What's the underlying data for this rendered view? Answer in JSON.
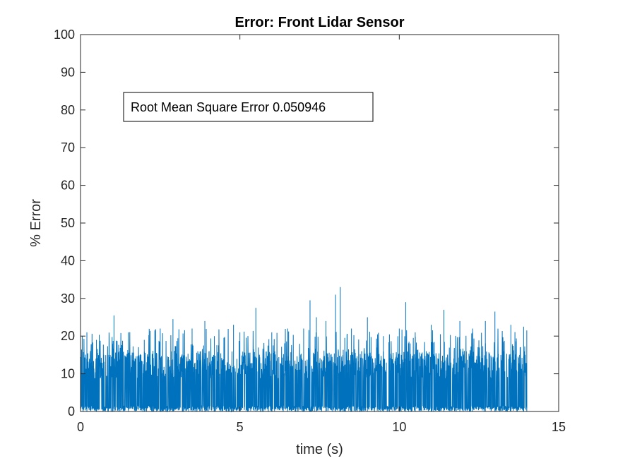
{
  "chart_data": {
    "type": "line",
    "title": "Error: Front Lidar Sensor",
    "xlabel": "time (s)",
    "ylabel": "% Error",
    "xlim": [
      0,
      15
    ],
    "ylim": [
      0,
      100
    ],
    "xticks": [
      0,
      5,
      10,
      15
    ],
    "yticks": [
      0,
      10,
      20,
      30,
      40,
      50,
      60,
      70,
      80,
      90,
      100
    ],
    "grid": false,
    "series": [
      {
        "color": "#0072BD",
        "x_range": [
          0,
          14
        ],
        "typical_band": [
          0,
          16
        ],
        "x": [
          0,
          0.2,
          0.5,
          1.0,
          1.05,
          1.5,
          2.0,
          2.5,
          2.9,
          3.5,
          3.9,
          4.2,
          4.8,
          5.0,
          5.5,
          6.0,
          6.5,
          7.0,
          7.2,
          7.4,
          7.7,
          8.0,
          8.15,
          8.5,
          9.0,
          9.5,
          10.0,
          10.2,
          10.5,
          11.0,
          11.4,
          11.9,
          12.3,
          12.7,
          13.0,
          13.5,
          13.9,
          14.0
        ],
        "peaks": [
          19,
          21,
          19,
          18,
          25.5,
          21,
          19,
          22,
          24.5,
          22,
          24,
          20,
          23,
          21,
          27.5,
          21,
          22,
          22,
          29.5,
          25,
          24,
          31,
          33,
          22,
          25,
          20,
          22,
          29,
          21,
          23,
          27,
          24,
          22,
          24,
          26.5,
          23,
          22.5,
          21.5
        ]
      }
    ],
    "annotation": {
      "text": "Root Mean Square Error 0.050946",
      "position": "upper-left"
    }
  }
}
